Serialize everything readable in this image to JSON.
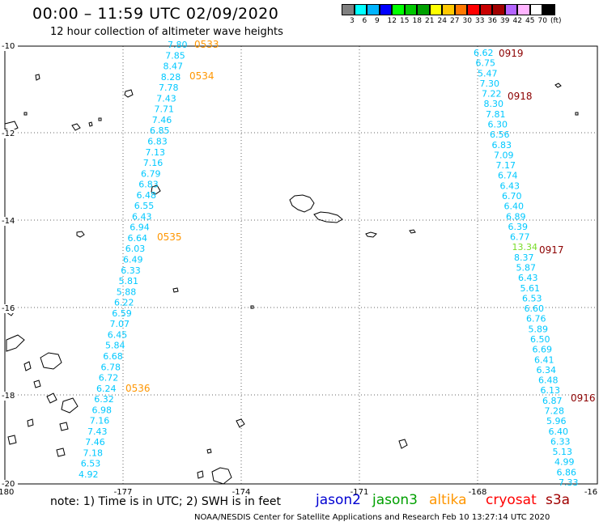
{
  "header": {
    "title": "00:00 – 11:59 UTC 02/09/2020",
    "subtitle": "12 hour collection of altimeter wave heights"
  },
  "legend": {
    "colors": [
      "#808080",
      "#00ffff",
      "#00b4ff",
      "#0000ff",
      "#00ff00",
      "#00c800",
      "#00a000",
      "#ffff00",
      "#ffc800",
      "#ff7800",
      "#ff0000",
      "#c80000",
      "#a00000",
      "#b464ff",
      "#ffb4ff",
      "#ffffff",
      "#000000"
    ],
    "labels": [
      "3",
      "6",
      "9",
      "12",
      "15",
      "18",
      "21",
      "24",
      "27",
      "30",
      "33",
      "36",
      "39",
      "42",
      "45",
      "70",
      "(ft)"
    ]
  },
  "map": {
    "lon_ticks": [
      "-180",
      "-177",
      "-174",
      "-171",
      "-168",
      "-16"
    ],
    "lat_ticks": [
      "-10",
      "-12",
      "-14",
      "-16",
      "-18",
      "-20"
    ],
    "colors": {
      "cyan": "#00c8ff",
      "green": "#78dc28",
      "orange": "#ff9600",
      "darkred": "#8c0000",
      "grid": "#666666"
    }
  },
  "tracks": {
    "track_a": {
      "values": [
        "7.80",
        "7.85",
        "8.47",
        "8.28",
        "7.78",
        "7.43",
        "7.71",
        "7.46",
        "6.85",
        "6.83",
        "7.13",
        "7.16",
        "6.79",
        "6.83",
        "6.48",
        "6.55",
        "6.43",
        "6.94",
        "6.64",
        "6.03",
        "6.49",
        "6.33",
        "5.81",
        "5.88",
        "6.22",
        "6.59",
        "7.07",
        "6.45",
        "5.84",
        "6.68",
        "6.78",
        "6.72",
        "6.24",
        "6.32",
        "6.98",
        "7.16",
        "7.43",
        "7.46",
        "7.18",
        "6.53",
        "4.92"
      ],
      "times": [
        "0533",
        "0534",
        "0535",
        "0536"
      ]
    },
    "track_b": {
      "values": [
        "6.62",
        "6.75",
        "5.47",
        "7.30",
        "7.22",
        "8.30",
        "7.81",
        "6.30",
        "6.56",
        "6.83",
        "7.09",
        "7.17",
        "6.74",
        "6.43",
        "6.70",
        "6.40",
        "6.89",
        "6.39",
        "6.77",
        "13.34",
        "8.37",
        "5.87",
        "6.43",
        "5.61",
        "6.53",
        "6.60",
        "6.76",
        "5.89",
        "6.50",
        "6.69",
        "6.41",
        "6.34",
        "6.48",
        "6.13",
        "6.87",
        "7.28",
        "5.96",
        "6.40",
        "6.33",
        "5.13",
        "4.99",
        "6.86",
        "7.33"
      ],
      "times": [
        "0919",
        "0918",
        "0917",
        "0916"
      ]
    }
  },
  "footer": {
    "note": "note:  1) Time is in UTC;  2) SWH is in feet",
    "satellites": [
      {
        "name": "jason2",
        "color": "#0000d2"
      },
      {
        "name": "jason3",
        "color": "#00a000"
      },
      {
        "name": "altika",
        "color": "#ff9600"
      },
      {
        "name": "cryosat",
        "color": "#ff0000"
      },
      {
        "name": "s3a",
        "color": "#a00000"
      }
    ],
    "credit": "NOAA/NESDIS Center for Satellite Applications and Research     Feb 10 13:27:14 UTC 2020"
  }
}
